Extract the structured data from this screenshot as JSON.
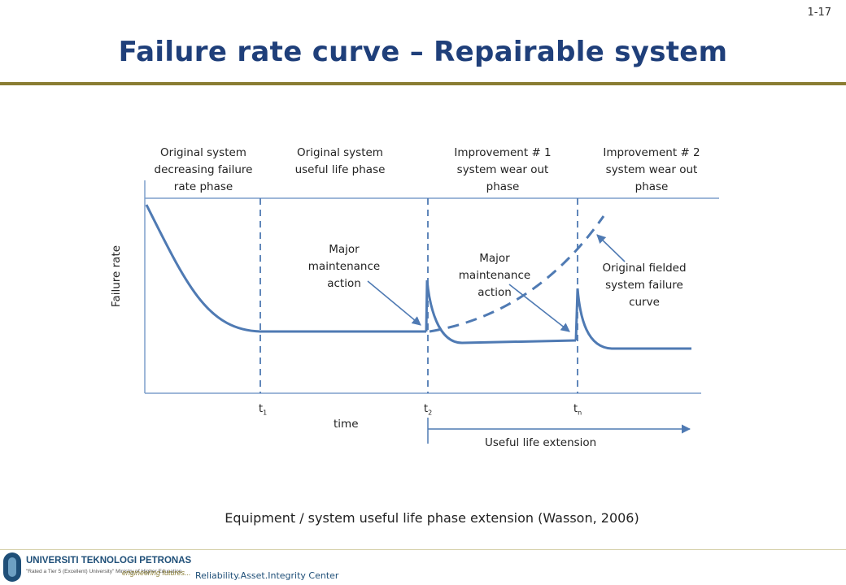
{
  "slide_number": "1-17",
  "title": "Failure rate curve – Repairable system",
  "diagram": {
    "phases": [
      [
        "Original system",
        "decreasing failure",
        "rate phase"
      ],
      [
        "Original system",
        "useful life phase"
      ],
      [
        "Improvement # 1",
        "system wear out",
        "phase"
      ],
      [
        "Improvement # 2",
        "system wear out",
        "phase"
      ]
    ],
    "y_label": "Failure rate",
    "x_label": "time",
    "ticks": [
      {
        "base": "t",
        "sub": "1"
      },
      {
        "base": "t",
        "sub": "2"
      },
      {
        "base": "t",
        "sub": "n"
      }
    ],
    "annotations": {
      "major_maintenance_1": [
        "Major",
        "maintenance",
        "action"
      ],
      "major_maintenance_2": [
        "Major",
        "maintenance",
        "action"
      ],
      "original_curve": [
        "Original fielded",
        "system failure",
        "curve"
      ]
    },
    "extension_label": "Useful life extension",
    "colors": {
      "curve": "#4f7ab3",
      "axis": "#7f9fcc",
      "arrow": "#4f7ab3"
    }
  },
  "caption": "Equipment / system useful life phase extension (Wasson, 2006)",
  "footer": {
    "university": "UNIVERSITI TEKNOLOGI PETRONAS",
    "rating": "\"Rated a Tier 5 (Excellent) University\" Ministry of Higher Education",
    "tagline": "engineering futures...",
    "center": "Reliability.Asset.Integrity Center"
  }
}
